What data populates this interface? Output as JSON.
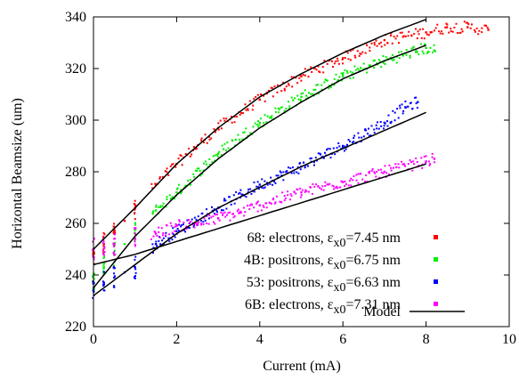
{
  "chart_data": {
    "type": "scatter",
    "xlabel": "Current (mA)",
    "ylabel": "Horizontal Beamsize (um)",
    "xlim": [
      0,
      10
    ],
    "ylim": [
      220,
      340
    ],
    "xticks": [
      "0",
      "2",
      "4",
      "6",
      "8",
      "10"
    ],
    "yticks": [
      "220",
      "240",
      "260",
      "280",
      "300",
      "320",
      "340"
    ],
    "grid": false,
    "legend_position": "bottom-right",
    "series": [
      {
        "name": "68: electrons, εx0=7.45 nm",
        "name_parts": {
          "prefix": "68: electrons, ε",
          "sub": "x0",
          "suffix": "=7.45 nm"
        },
        "color": "#ff0000",
        "x": [
          0,
          0.25,
          0.5,
          0.75,
          1.0,
          1.5,
          2.0,
          3.0,
          4.0,
          5.0,
          6.0,
          7.0,
          8.0,
          8.5,
          9.0,
          9.5
        ],
        "y": [
          247,
          252,
          257,
          261,
          266,
          275,
          283,
          297,
          308,
          317,
          324,
          331,
          334,
          336,
          336,
          335
        ]
      },
      {
        "name": "4B: positrons, εx0=6.75 nm",
        "name_parts": {
          "prefix": "4B: positrons, ε",
          "sub": "x0",
          "suffix": "=6.75 nm"
        },
        "color": "#00ee00",
        "x": [
          0,
          0.25,
          0.5,
          0.75,
          1.0,
          1.5,
          2.0,
          3.0,
          4.0,
          5.0,
          6.0,
          7.0,
          8.0,
          8.2
        ],
        "y": [
          237,
          243,
          248,
          252,
          256,
          265,
          272,
          287,
          299,
          309,
          317,
          323,
          328,
          327
        ]
      },
      {
        "name": "53: positrons, εx0=6.63 nm",
        "name_parts": {
          "prefix": "53: positrons, ε",
          "sub": "x0",
          "suffix": "=6.63 nm"
        },
        "color": "#0000ff",
        "x": [
          0,
          0.25,
          0.5,
          0.75,
          1.0,
          1.5,
          2.0,
          3.0,
          4.0,
          5.0,
          6.0,
          7.0,
          7.5,
          7.8
        ],
        "y": [
          234,
          237,
          239,
          241,
          243,
          252,
          257,
          266,
          275,
          282,
          290,
          299,
          305,
          307
        ]
      },
      {
        "name": "6B: electrons, εx0=7.31 nm",
        "name_parts": {
          "prefix": "6B: electrons, ε",
          "sub": "x0",
          "suffix": "=7.31 nm"
        },
        "color": "#ff00ff",
        "x": [
          0,
          0.5,
          1.0,
          1.5,
          2.0,
          2.5,
          3.0,
          3.5,
          4.0,
          5.0,
          6.0,
          7.0,
          8.0,
          8.2
        ],
        "y": [
          250,
          252,
          254,
          256,
          259,
          260,
          262,
          264,
          267,
          272,
          276,
          280,
          284,
          285
        ]
      }
    ],
    "model": {
      "name": "Model",
      "color": "#000000",
      "curves": [
        {
          "x": [
            0,
            1,
            2,
            3,
            4,
            5,
            6,
            7,
            8
          ],
          "y": [
            250,
            266,
            283,
            297,
            309,
            318,
            326,
            333,
            339
          ]
        },
        {
          "x": [
            0,
            1,
            2,
            3,
            4,
            5,
            6,
            7,
            8
          ],
          "y": [
            235,
            255,
            271,
            285,
            297,
            307,
            316,
            323,
            329
          ]
        },
        {
          "x": [
            0,
            1,
            2,
            3,
            4,
            5,
            6,
            7,
            8
          ],
          "y": [
            232,
            244,
            256,
            266,
            274,
            282,
            289,
            296,
            303
          ]
        },
        {
          "x": [
            0,
            1,
            2,
            3,
            4,
            5,
            6,
            7,
            8
          ],
          "y": [
            244,
            248,
            253,
            258,
            263,
            268,
            273,
            278,
            283
          ]
        }
      ]
    }
  }
}
